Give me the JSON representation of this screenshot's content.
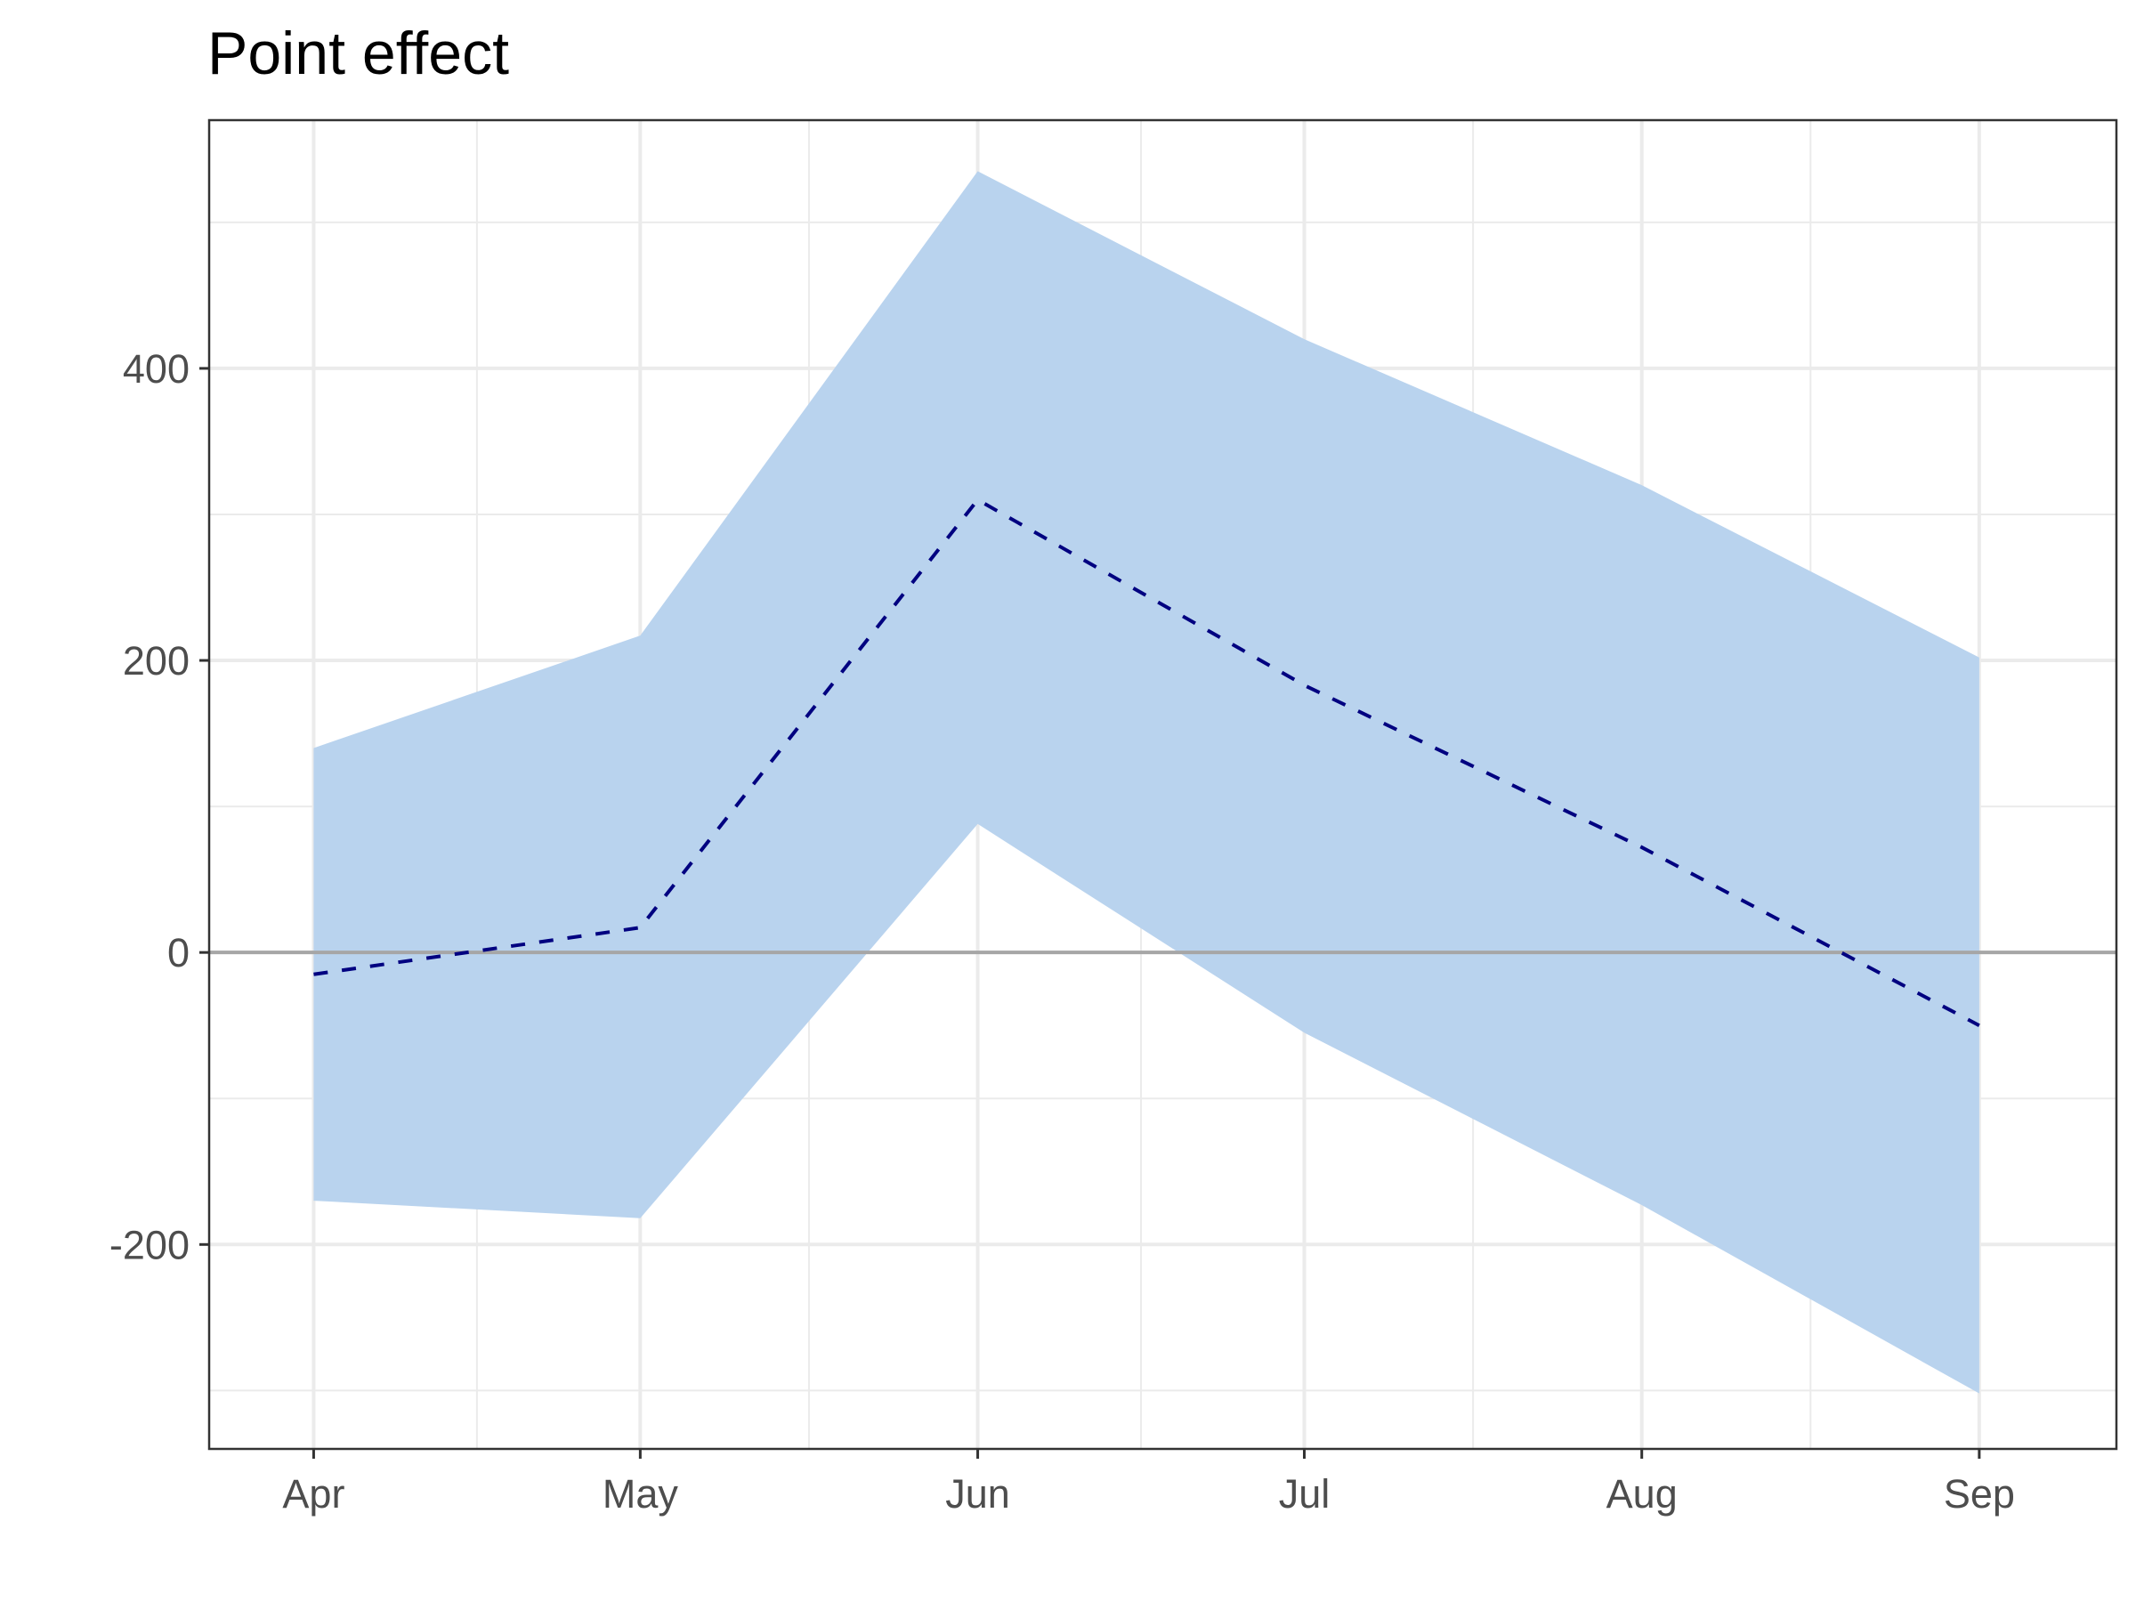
{
  "chart_data": {
    "type": "area",
    "title": "Point effect",
    "xlabel": "",
    "ylabel": "",
    "x": [
      "Apr",
      "May",
      "Jun",
      "Jul",
      "Aug",
      "Sep"
    ],
    "x_day_positions": [
      0,
      30,
      61,
      91,
      122,
      153
    ],
    "x_ticks": [
      "Apr",
      "May",
      "Jun",
      "Jul",
      "Aug",
      "Sep"
    ],
    "y_ticks": [
      -200,
      0,
      200,
      400
    ],
    "ylim": [
      -340,
      570
    ],
    "grid": true,
    "zero_line": true,
    "series": [
      {
        "kind": "band",
        "lower": [
          -170,
          -182,
          88,
          -55,
          -173,
          -302
        ],
        "upper": [
          140,
          217,
          535,
          420,
          320,
          202
        ],
        "color": "#b9d3ee"
      },
      {
        "kind": "line",
        "style": "dashed",
        "values": [
          -15,
          17,
          310,
          183,
          72,
          -50
        ],
        "color": "#000080"
      }
    ],
    "colors": {
      "band": "#b9d3ee",
      "line": "#000080",
      "zero_line": "#a6a6a6",
      "grid": "#ebebeb",
      "panel_border": "#333333"
    }
  }
}
